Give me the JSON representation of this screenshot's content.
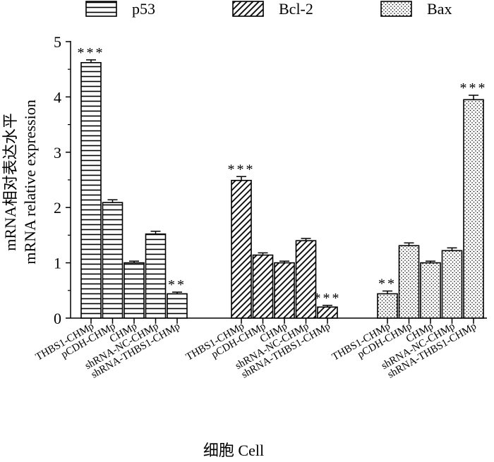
{
  "chart_data": {
    "type": "bar",
    "groups": [
      "p53",
      "Bcl-2",
      "Bax"
    ],
    "categories": [
      "THBS1-CHMp",
      "pCDH-CHMp",
      "CHMp",
      "shRNA-NC-CHMp",
      "shRNA-THBS1-CHMp"
    ],
    "series": [
      {
        "name": "p53",
        "values": [
          4.62,
          2.09,
          1.0,
          1.52,
          0.44
        ],
        "errors": [
          0.05,
          0.05,
          0.03,
          0.05,
          0.03
        ],
        "significance": [
          "***",
          "",
          "",
          "",
          "**"
        ]
      },
      {
        "name": "Bcl-2",
        "values": [
          2.49,
          1.14,
          1.0,
          1.4,
          0.2
        ],
        "errors": [
          0.07,
          0.04,
          0.03,
          0.04,
          0.03
        ],
        "significance": [
          "***",
          "",
          "",
          "",
          "***"
        ]
      },
      {
        "name": "Bax",
        "values": [
          0.44,
          1.31,
          1.0,
          1.22,
          3.95
        ],
        "errors": [
          0.05,
          0.05,
          0.03,
          0.05,
          0.08
        ],
        "significance": [
          "**",
          "",
          "",
          "",
          "***"
        ]
      }
    ],
    "ylabel": "mRNA相对表达水平",
    "ylabel2": "mRNA relative expression",
    "xlabel": "细胞  Cell",
    "ylim": [
      0,
      5
    ],
    "yticks": [
      0,
      1,
      2,
      3,
      4,
      5
    ],
    "grid": false,
    "legend_position": "top"
  }
}
